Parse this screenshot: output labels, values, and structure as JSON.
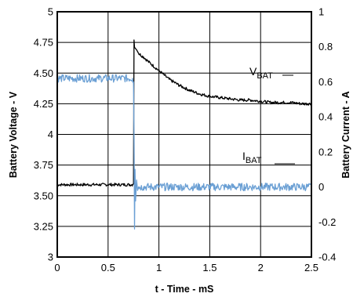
{
  "chart_data": {
    "type": "line",
    "xlabel": "t - Time - mS",
    "ylabel": "Battery Voltage - V",
    "y2label": "Battery Current - A",
    "xlim": [
      0,
      2.5
    ],
    "ylim": [
      3,
      5
    ],
    "y2lim": [
      -0.4,
      1
    ],
    "x_ticks": [
      "0",
      "0.5",
      "1",
      "1.5",
      "2",
      "2.5"
    ],
    "y_ticks": [
      "3",
      "3.25",
      "3.50",
      "3.75",
      "4",
      "4.25",
      "4.50",
      "4.75",
      "5"
    ],
    "y2_ticks": [
      "-0.4",
      "-0.2",
      "0",
      "0.2",
      "0.4",
      "0.6",
      "0.8",
      "1"
    ],
    "grid": true,
    "series": [
      {
        "name": "VBAT",
        "label_main": "V",
        "label_sub": "BAT",
        "axis": "left",
        "color": "#000000",
        "x": [
          0,
          0.2,
          0.4,
          0.6,
          0.74,
          0.75,
          0.755,
          0.76,
          0.78,
          0.8,
          0.85,
          0.9,
          1.0,
          1.1,
          1.2,
          1.3,
          1.4,
          1.5,
          1.6,
          1.7,
          1.8,
          1.9,
          2.0,
          2.1,
          2.2,
          2.3,
          2.4,
          2.5
        ],
        "y": [
          3.59,
          3.59,
          3.59,
          3.59,
          3.59,
          3.6,
          4.77,
          4.71,
          4.69,
          4.66,
          4.63,
          4.59,
          4.52,
          4.45,
          4.4,
          4.36,
          4.33,
          4.31,
          4.3,
          4.29,
          4.28,
          4.28,
          4.27,
          4.26,
          4.26,
          4.26,
          4.25,
          4.25
        ]
      },
      {
        "name": "IBAT",
        "label_main": "I",
        "label_sub": "BAT",
        "axis": "right",
        "color": "#6a9fd4",
        "x": [
          0,
          0.2,
          0.4,
          0.6,
          0.74,
          0.75,
          0.755,
          0.76,
          0.765,
          0.77,
          0.78,
          0.79,
          0.8,
          0.85,
          0.9,
          1.0,
          1.5,
          2.0,
          2.5
        ],
        "y": [
          0.62,
          0.62,
          0.62,
          0.62,
          0.62,
          0.6,
          0.3,
          -0.24,
          0.1,
          -0.08,
          0.04,
          -0.02,
          0.0,
          0.0,
          0.0,
          0.0,
          0.0,
          0.0,
          0.0
        ]
      }
    ]
  }
}
